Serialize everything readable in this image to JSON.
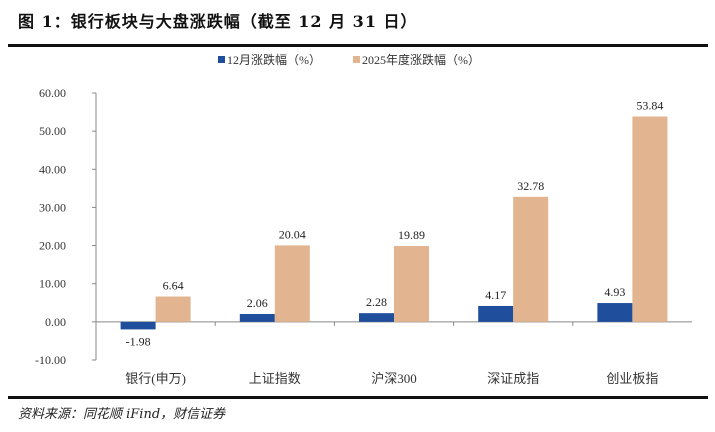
{
  "title": "图 1：银行板块与大盘涨跌幅（截至 12 月 31 日）",
  "source": "资料来源：同花顺 iFind，财信证券",
  "chart_data": {
    "type": "bar",
    "categories": [
      "银行(申万)",
      "上证指数",
      "沪深300",
      "深证成指",
      "创业板指"
    ],
    "series": [
      {
        "name": "12月涨跌幅（%）",
        "values": [
          -1.98,
          2.06,
          2.28,
          4.17,
          4.93
        ],
        "color": "#1f4e9c"
      },
      {
        "name": "2025年度涨跌幅（%）",
        "values": [
          6.64,
          20.04,
          19.89,
          32.78,
          53.84
        ],
        "color": "#e2b48f"
      }
    ],
    "ylim": [
      -10,
      60
    ],
    "yticks": [
      "-10.00",
      "0.00",
      "10.00",
      "20.00",
      "30.00",
      "40.00",
      "50.00",
      "60.00"
    ],
    "data_labels": [
      [
        "-1.98",
        "2.06",
        "2.28",
        "4.17",
        "4.93"
      ],
      [
        "6.64",
        "20.04",
        "19.89",
        "32.78",
        "53.84"
      ]
    ],
    "legend": "top",
    "grid": false
  }
}
